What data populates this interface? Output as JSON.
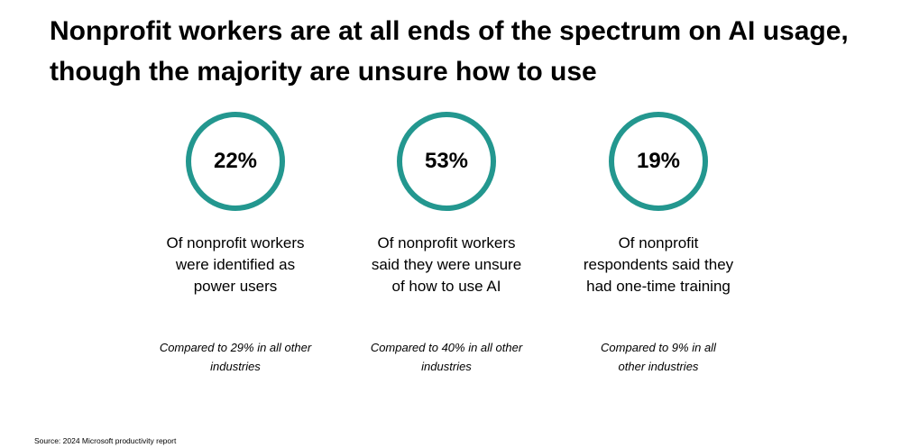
{
  "page": {
    "title": "Nonprofit workers are at all ends of the spectrum on AI usage, though the majority are unsure how to use",
    "source": "Source: 2024 Microsoft productivity report",
    "accent_color": "#23978f"
  },
  "stats": [
    {
      "value": "22%",
      "description": "Of nonprofit workers were identified as power users",
      "comparison": "Compared to 29% in all other industries"
    },
    {
      "value": "53%",
      "description": "Of nonprofit workers said they were unsure of how to use AI",
      "comparison": "Compared to 40% in all other industries"
    },
    {
      "value": "19%",
      "description": "Of nonprofit respondents said they had one-time training",
      "comparison": "Compared to 9% in all other industries"
    }
  ]
}
